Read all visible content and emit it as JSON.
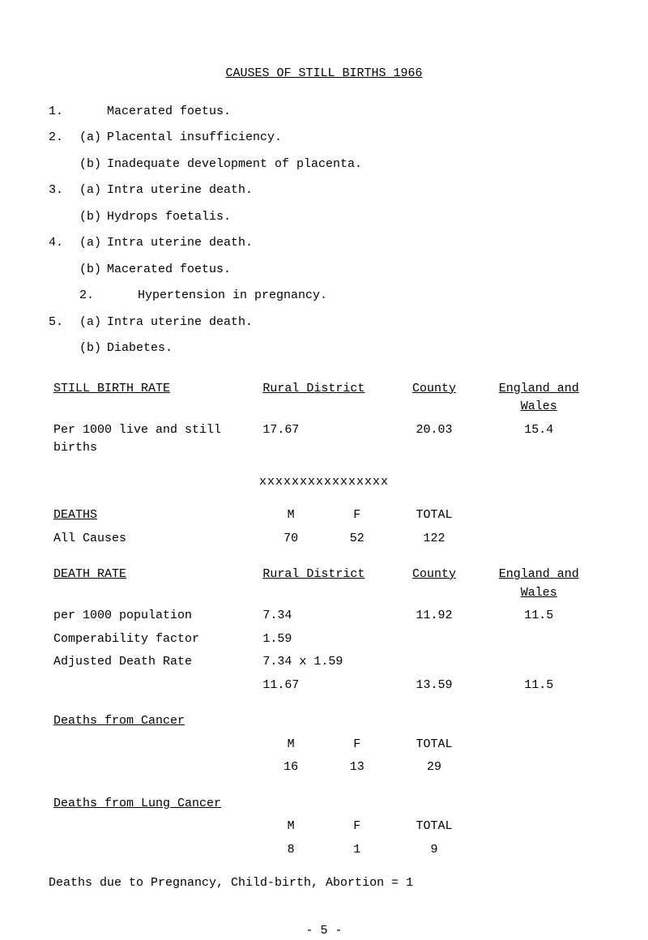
{
  "title": "CAUSES OF STILL BIRTHS   1966",
  "items": [
    {
      "num": "1.",
      "sub": "",
      "text": "Macerated foetus."
    },
    {
      "num": "2.",
      "sub": "(a)",
      "text": "Placental insufficiency."
    },
    {
      "num": "",
      "sub": "(b)",
      "text": "Inadequate development of placenta."
    },
    {
      "num": "3.",
      "sub": "(a)",
      "text": "Intra uterine death."
    },
    {
      "num": "",
      "sub": "(b)",
      "text": "Hydrops foetalis."
    },
    {
      "num": "4.",
      "sub": "(a)",
      "text": "Intra uterine death."
    },
    {
      "num": "",
      "sub": "(b)",
      "text": "Macerated foetus."
    },
    {
      "num": "2.",
      "sub": "",
      "text": "Hypertension in pregnancy.",
      "indent": true
    },
    {
      "num": "5.",
      "sub": "(a)",
      "text": "Intra uterine death."
    },
    {
      "num": "",
      "sub": "(b)",
      "text": "Diabetes."
    }
  ],
  "sbr": {
    "header": {
      "label": "STILL BIRTH RATE",
      "rd": "Rural District",
      "county": "County",
      "ew": "England and Wales"
    },
    "row": {
      "label": "Per 1000 live and still births",
      "rd": "17.67",
      "county": "20.03",
      "ew": "15.4"
    }
  },
  "divider": "xxxxxxxxxxxxxxxx",
  "deaths": {
    "header": {
      "label": "DEATHS",
      "m": "M",
      "f": "F",
      "total": "TOTAL"
    },
    "row": {
      "label": "All Causes",
      "m": "70",
      "f": "52",
      "total": "122"
    }
  },
  "death_rate": {
    "header": {
      "label": "DEATH RATE",
      "rd": "Rural District",
      "county": "County",
      "ew": "England and Wales"
    },
    "rows": [
      {
        "label": "per 1000 population",
        "rd": "7.34",
        "county": "11.92",
        "ew": "11.5"
      },
      {
        "label": "Comperability factor",
        "rd": "1.59",
        "county": "",
        "ew": ""
      },
      {
        "label": "Adjusted Death Rate",
        "rd": "7.34 x 1.59",
        "county": "",
        "ew": ""
      },
      {
        "label": "",
        "rd": "11.67",
        "county": "13.59",
        "ew": "11.5"
      }
    ]
  },
  "cancer": {
    "header": {
      "label": "Deaths from Cancer",
      "m": "M",
      "f": "F",
      "total": "TOTAL"
    },
    "row": {
      "label": "",
      "m": "16",
      "f": "13",
      "total": "29"
    }
  },
  "lung": {
    "header": {
      "label": "Deaths from Lung Cancer",
      "m": "M",
      "f": "F",
      "total": "TOTAL"
    },
    "row": {
      "label": "",
      "m": "8",
      "f": "1",
      "total": "9"
    }
  },
  "pregnancy_line": "Deaths due to Pregnancy, Child-birth, Abortion = 1",
  "page_num": "- 5 -"
}
